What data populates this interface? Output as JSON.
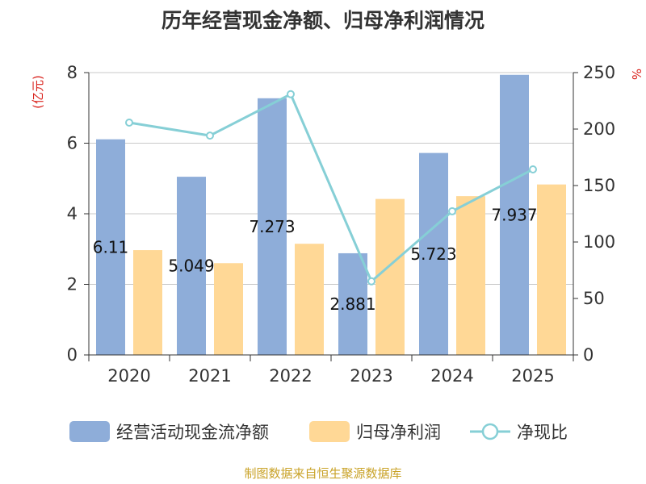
{
  "chart_data": {
    "type": "bar",
    "title": "历年经营现金净额、归母净利润情况",
    "categories": [
      "2020",
      "2021",
      "2022",
      "2023",
      "2024",
      "2025"
    ],
    "series": [
      {
        "name": "经营活动现金流净额",
        "kind": "bar",
        "axis": "left",
        "color": "#8eadd9",
        "values": [
          6.11,
          5.049,
          7.273,
          2.881,
          5.723,
          7.937
        ],
        "data_labels": [
          "6.11",
          "5.049",
          "7.273",
          "2.881",
          "5.723",
          "7.937"
        ]
      },
      {
        "name": "归母净利润",
        "kind": "bar",
        "axis": "left",
        "color": "#ffd896",
        "values": [
          2.97,
          2.6,
          3.15,
          4.42,
          4.5,
          4.83
        ]
      },
      {
        "name": "净现比",
        "kind": "line",
        "axis": "right",
        "color": "#86cfd6",
        "values": [
          205.7,
          194.2,
          230.9,
          65.2,
          127.2,
          164.3
        ]
      }
    ],
    "left_axis": {
      "unit": "(亿元)",
      "min": 0,
      "max": 8,
      "ticks": [
        "0",
        "2",
        "4",
        "6",
        "8"
      ]
    },
    "right_axis": {
      "unit": "%",
      "min": 0,
      "max": 250,
      "ticks": [
        "0",
        "50",
        "100",
        "150",
        "200",
        "250"
      ]
    },
    "grid": true,
    "legend_position": "bottom"
  },
  "source": "制图数据来自恒生聚源数据库"
}
